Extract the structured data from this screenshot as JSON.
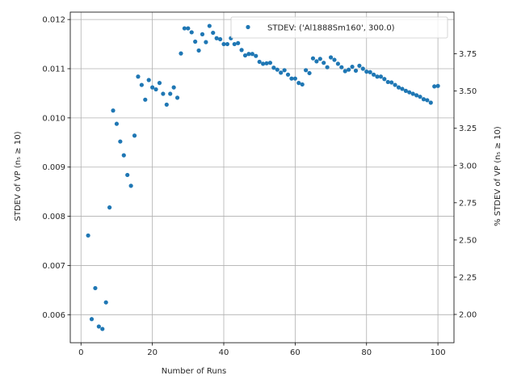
{
  "chart_data": {
    "type": "scatter",
    "xlabel": "Number of Runs",
    "ylabel": "STDEV of VP (n₅ ≥ 10)",
    "ylabel_right": "% STDEV of VP (n₅ ≥ 10)",
    "xlim": [
      -3.0,
      104.5
    ],
    "ylim": [
      0.00543,
      0.01215
    ],
    "ylim_right": [
      1.81,
      4.03
    ],
    "grid": true,
    "legend_position": "top-right",
    "x_ticks": [
      0,
      20,
      40,
      60,
      80,
      100
    ],
    "x_tick_labels": [
      "0",
      "20",
      "40",
      "60",
      "80",
      "100"
    ],
    "y_ticks": [
      0.006,
      0.007,
      0.008,
      0.009,
      0.01,
      0.011,
      0.012
    ],
    "y_tick_labels": [
      "0.006",
      "0.007",
      "0.008",
      "0.009",
      "0.010",
      "0.011",
      "0.012"
    ],
    "y2_ticks": [
      2.0,
      2.25,
      2.5,
      2.75,
      3.0,
      3.25,
      3.5,
      3.75
    ],
    "y2_tick_labels": [
      "2.00",
      "2.25",
      "2.50",
      "2.75",
      "3.00",
      "3.25",
      "3.50",
      "3.75"
    ],
    "series": [
      {
        "name": "STDEV: ('Al1888Sm160', 300.0)",
        "color": "#1f77b4",
        "x": [
          2,
          3,
          4,
          5,
          6,
          7,
          8,
          9,
          10,
          11,
          12,
          13,
          14,
          15,
          16,
          17,
          18,
          19,
          20,
          21,
          22,
          23,
          24,
          25,
          26,
          27,
          28,
          29,
          30,
          31,
          32,
          33,
          34,
          35,
          36,
          37,
          38,
          39,
          40,
          41,
          42,
          43,
          44,
          45,
          46,
          47,
          48,
          49,
          50,
          51,
          52,
          53,
          54,
          55,
          56,
          57,
          58,
          59,
          60,
          61,
          62,
          63,
          64,
          65,
          66,
          67,
          68,
          69,
          70,
          71,
          72,
          73,
          74,
          75,
          76,
          77,
          78,
          79,
          80,
          81,
          82,
          83,
          84,
          85,
          86,
          87,
          88,
          89,
          90,
          91,
          92,
          93,
          94,
          95,
          96,
          97,
          98,
          99,
          100
        ],
        "y": [
          0.00761,
          0.00591,
          0.00654,
          0.00576,
          0.00571,
          0.00625,
          0.00818,
          0.01015,
          0.00988,
          0.00952,
          0.00924,
          0.00884,
          0.00862,
          0.00964,
          0.01084,
          0.01067,
          0.01037,
          0.01077,
          0.01062,
          0.01058,
          0.01071,
          0.01049,
          0.01027,
          0.01049,
          0.01062,
          0.01041,
          0.01131,
          0.01182,
          0.01182,
          0.01174,
          0.01155,
          0.01137,
          0.0117,
          0.01154,
          0.01187,
          0.01173,
          0.01162,
          0.0116,
          0.0115,
          0.0115,
          0.01162,
          0.0115,
          0.01152,
          0.01138,
          0.01127,
          0.0113,
          0.0113,
          0.01126,
          0.01114,
          0.0111,
          0.01111,
          0.01112,
          0.01102,
          0.01098,
          0.01092,
          0.01097,
          0.01088,
          0.0108,
          0.0108,
          0.01071,
          0.01068,
          0.01097,
          0.01091,
          0.01121,
          0.01115,
          0.0112,
          0.01112,
          0.01103,
          0.01123,
          0.01118,
          0.0111,
          0.01103,
          0.01095,
          0.01098,
          0.01104,
          0.01096,
          0.01106,
          0.011,
          0.01094,
          0.01093,
          0.01088,
          0.01084,
          0.01084,
          0.01079,
          0.01073,
          0.01072,
          0.01067,
          0.01062,
          0.01059,
          0.01055,
          0.01052,
          0.01049,
          0.01046,
          0.01043,
          0.01038,
          0.01036,
          0.01031,
          0.01064,
          0.01065
        ]
      }
    ]
  }
}
